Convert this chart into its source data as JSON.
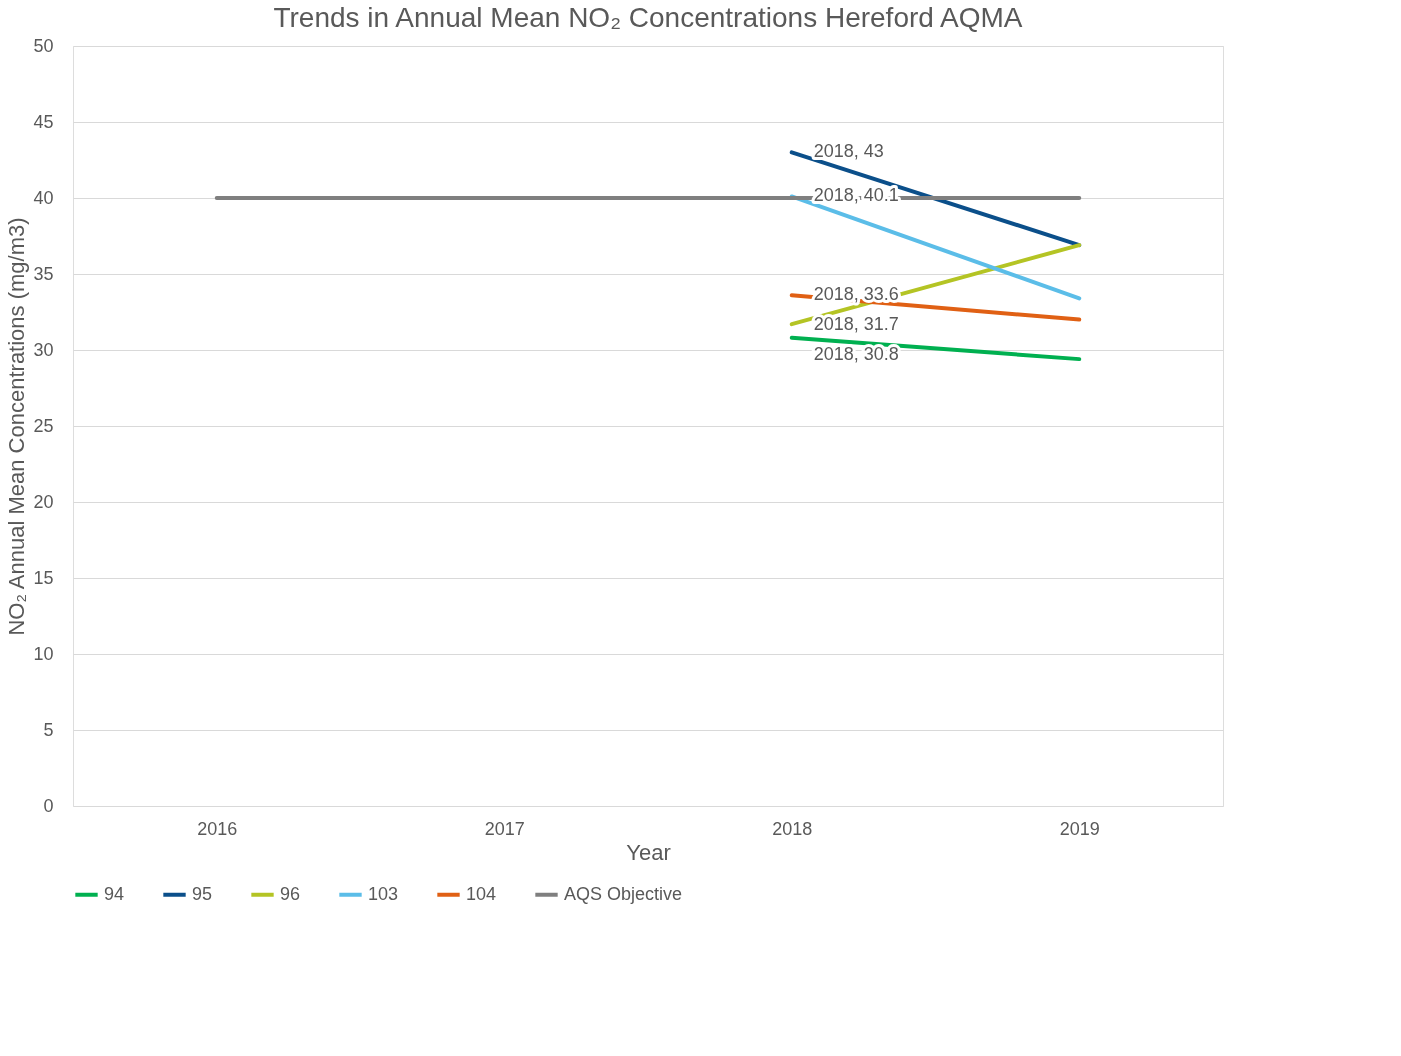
{
  "chart_data": {
    "type": "line",
    "title": "Trends in Annual Mean NO₂ Concentrations Hereford AQMA",
    "xlabel": "Year",
    "ylabel": "NO₂ Annual Mean Concentrations (mg/m3)",
    "categories": [
      "2016",
      "2017",
      "2018",
      "2019"
    ],
    "series": [
      {
        "name": "94",
        "color": "#00b050",
        "values": [
          null,
          null,
          30.8,
          29.4
        ],
        "value_labels": [
          null,
          null,
          "2018, 30.8",
          null
        ]
      },
      {
        "name": "95",
        "color": "#0b4f8a",
        "values": [
          null,
          null,
          43,
          36.9
        ],
        "value_labels": [
          null,
          null,
          "2018, 43",
          null
        ]
      },
      {
        "name": "96",
        "color": "#b4c424",
        "values": [
          null,
          null,
          31.7,
          36.9
        ],
        "value_labels": [
          null,
          null,
          "2018, 31.7",
          null
        ]
      },
      {
        "name": "103",
        "color": "#5bbde8",
        "values": [
          null,
          null,
          40.1,
          33.4
        ],
        "value_labels": [
          null,
          null,
          "2018, 40.1",
          null
        ]
      },
      {
        "name": "104",
        "color": "#e06014",
        "values": [
          null,
          null,
          33.6,
          32.0
        ],
        "value_labels": [
          null,
          null,
          "2018, 33.6",
          null
        ]
      },
      {
        "name": "AQS Objective",
        "color": "#7f7f7f",
        "values": [
          40,
          40,
          40,
          40
        ]
      }
    ],
    "ylim": [
      0,
      50
    ],
    "yticks": [
      0,
      5,
      10,
      15,
      20,
      25,
      30,
      35,
      40,
      45,
      50
    ],
    "grid": "y",
    "legend": "bottom",
    "marker": "none",
    "line_style": "solid"
  }
}
